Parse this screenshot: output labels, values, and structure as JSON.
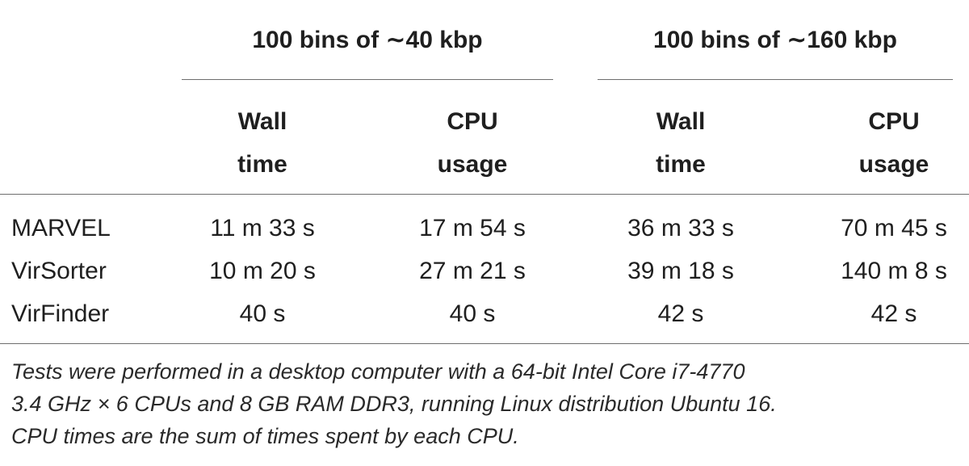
{
  "table": {
    "groups": [
      {
        "label": "100 bins of ∼40 kbp"
      },
      {
        "label": "100 bins of ∼160 kbp"
      }
    ],
    "columns": [
      {
        "line1": "Wall",
        "line2": "time"
      },
      {
        "line1": "CPU",
        "line2": "usage"
      },
      {
        "line1": "Wall",
        "line2": "time"
      },
      {
        "line1": "CPU",
        "line2": "usage"
      }
    ],
    "rows": [
      {
        "tool": "MARVEL",
        "values": [
          "11 m 33 s",
          "17 m 54 s",
          "36 m 33 s",
          "70 m 45 s"
        ]
      },
      {
        "tool": "VirSorter",
        "values": [
          "10 m 20 s",
          "27 m 21 s",
          "39 m 18 s",
          "140 m 8 s"
        ]
      },
      {
        "tool": "VirFinder",
        "values": [
          "40 s",
          "40 s",
          "42 s",
          "42 s"
        ]
      }
    ]
  },
  "footnote": {
    "lines": [
      "Tests were performed in a desktop computer with a 64-bit Intel Core i7-4770",
      "3.4 GHz × 6 CPUs and 8 GB RAM DDR3, running Linux distribution Ubuntu 16.",
      "CPU times are the sum of times spent by each CPU."
    ]
  }
}
